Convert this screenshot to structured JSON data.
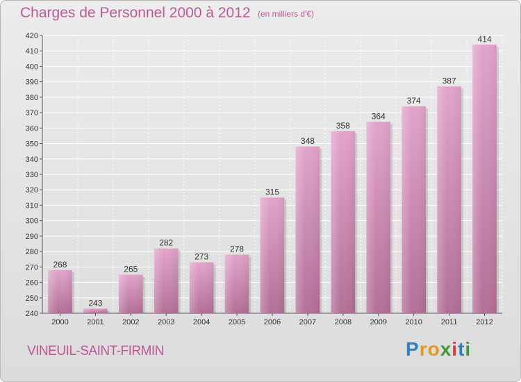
{
  "header": {
    "title": "Charges de Personnel 2000 à 2012",
    "subtitle": "(en milliers d'€)"
  },
  "footer": {
    "city": "VINEUIL-SAINT-FIRMIN",
    "logo": [
      "P",
      "r",
      "o",
      "x",
      "i",
      "t",
      "i"
    ],
    "logo_colors": [
      "#2f7fc4",
      "#e39a1c",
      "#e39a1c",
      "#3a9a3a",
      "#d63a3a",
      "#2f7fc4",
      "#3a9a3a"
    ]
  },
  "colors": {
    "bar_top": "#e3a4cb",
    "bar_bottom": "#b27097",
    "title": "#c05896",
    "grid": "#ffffff",
    "text": "#333333"
  },
  "chart_data": {
    "type": "bar",
    "title": "Charges de Personnel 2000 à 2012",
    "subtitle": "(en milliers d'€)",
    "categories": [
      "2000",
      "2001",
      "2002",
      "2003",
      "2004",
      "2005",
      "2006",
      "2007",
      "2008",
      "2009",
      "2010",
      "2011",
      "2012"
    ],
    "values": [
      268,
      243,
      265,
      282,
      273,
      278,
      315,
      348,
      358,
      364,
      374,
      387,
      414
    ],
    "ylim": [
      240,
      420
    ],
    "yticks": [
      240,
      250,
      260,
      270,
      280,
      290,
      300,
      310,
      320,
      330,
      340,
      350,
      360,
      370,
      380,
      390,
      400,
      410,
      420
    ],
    "grid": true,
    "legend": "none",
    "xlabel": "",
    "ylabel": ""
  }
}
